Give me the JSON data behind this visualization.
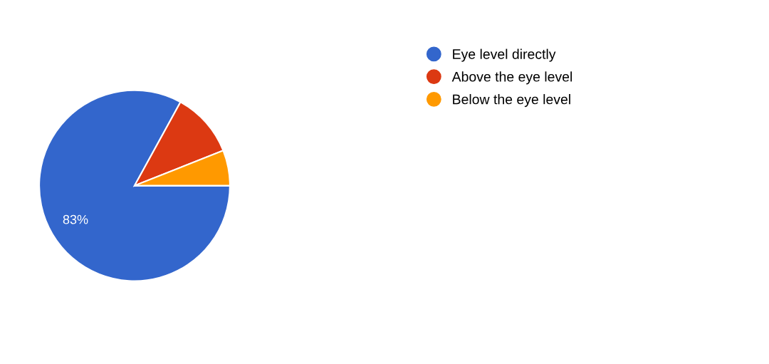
{
  "chart_data": {
    "type": "pie",
    "categories": [
      "Eye level directly",
      "Above the eye level",
      "Below the eye level"
    ],
    "values": [
      83,
      11,
      6
    ],
    "colors": [
      "#3366cc",
      "#dc3912",
      "#ff9900"
    ],
    "value_labels": [
      "83%",
      null,
      null
    ],
    "legend": "top right"
  }
}
